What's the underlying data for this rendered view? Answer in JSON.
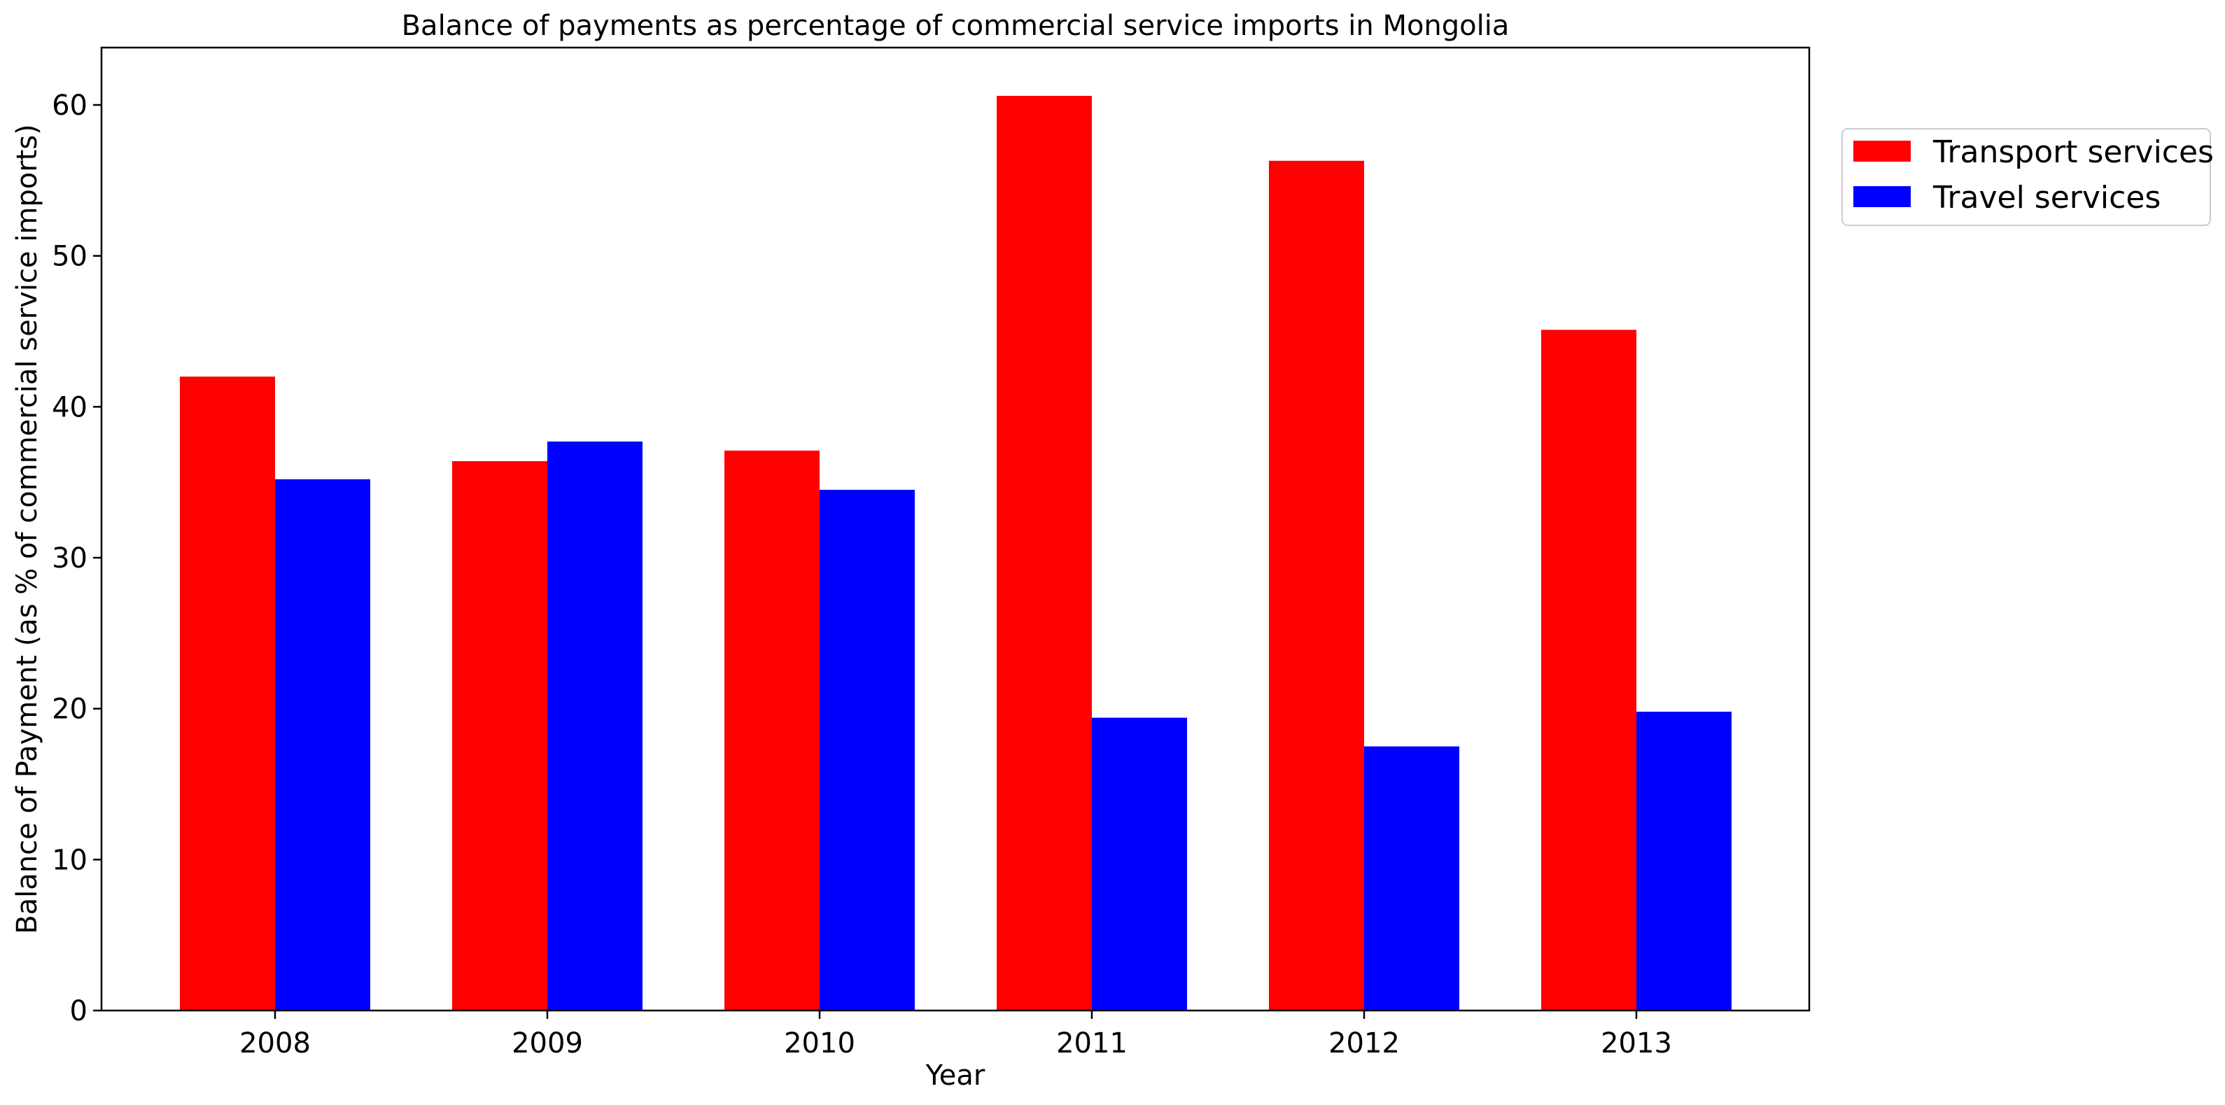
{
  "chart_data": {
    "type": "bar",
    "title": "Balance of payments as percentage of commercial service imports in Mongolia",
    "xlabel": "Year",
    "ylabel": "Balance of Payment (as % of commercial service imports)",
    "categories": [
      "2008",
      "2009",
      "2010",
      "2011",
      "2012",
      "2013"
    ],
    "series": [
      {
        "name": "Transport services",
        "color": "#ff0000",
        "values": [
          42.0,
          36.4,
          37.1,
          60.6,
          56.3,
          45.1
        ]
      },
      {
        "name": "Travel services",
        "color": "#0000ff",
        "values": [
          35.2,
          37.7,
          34.5,
          19.4,
          17.5,
          19.8
        ]
      }
    ],
    "ylim": [
      0,
      63.8
    ],
    "yticks": [
      0,
      10,
      20,
      30,
      40,
      50,
      60
    ],
    "grid": false,
    "legend_position": "upper-right-outside"
  }
}
